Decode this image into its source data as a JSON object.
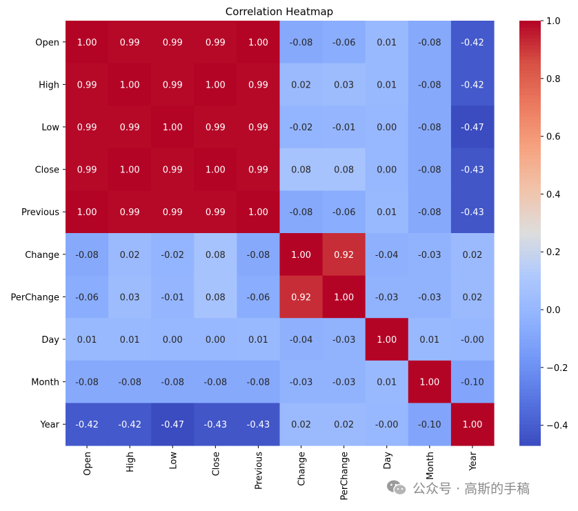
{
  "chart_data": {
    "type": "heatmap",
    "title": "Correlation Heatmap",
    "rows": [
      "Open",
      "High",
      "Low",
      "Close",
      "Previous",
      "Change",
      "PerChange",
      "Day",
      "Month",
      "Year"
    ],
    "columns": [
      "Open",
      "High",
      "Low",
      "Close",
      "Previous",
      "Change",
      "PerChange",
      "Day",
      "Month",
      "Year"
    ],
    "values": [
      [
        1.0,
        0.99,
        0.99,
        0.99,
        1.0,
        -0.08,
        -0.06,
        0.01,
        -0.08,
        -0.42
      ],
      [
        0.99,
        1.0,
        0.99,
        1.0,
        0.99,
        0.02,
        0.03,
        0.01,
        -0.08,
        -0.42
      ],
      [
        0.99,
        0.99,
        1.0,
        0.99,
        0.99,
        -0.02,
        -0.01,
        0.0,
        -0.08,
        -0.47
      ],
      [
        0.99,
        1.0,
        0.99,
        1.0,
        0.99,
        0.08,
        0.08,
        0.0,
        -0.08,
        -0.43
      ],
      [
        1.0,
        0.99,
        0.99,
        0.99,
        1.0,
        -0.08,
        -0.06,
        0.01,
        -0.08,
        -0.43
      ],
      [
        -0.08,
        0.02,
        -0.02,
        0.08,
        -0.08,
        1.0,
        0.92,
        -0.04,
        -0.03,
        0.02
      ],
      [
        -0.06,
        0.03,
        -0.01,
        0.08,
        -0.06,
        0.92,
        1.0,
        -0.03,
        -0.03,
        0.02
      ],
      [
        0.01,
        0.01,
        0.0,
        0.0,
        0.01,
        -0.04,
        -0.03,
        1.0,
        0.01,
        -0.0
      ],
      [
        -0.08,
        -0.08,
        -0.08,
        -0.08,
        -0.08,
        -0.03,
        -0.03,
        0.01,
        1.0,
        -0.1
      ],
      [
        -0.42,
        -0.42,
        -0.47,
        -0.43,
        -0.43,
        0.02,
        0.02,
        -0.0,
        -0.1,
        1.0
      ]
    ],
    "labels": [
      [
        "1.00",
        "0.99",
        "0.99",
        "0.99",
        "1.00",
        "-0.08",
        "-0.06",
        "0.01",
        "-0.08",
        "-0.42"
      ],
      [
        "0.99",
        "1.00",
        "0.99",
        "1.00",
        "0.99",
        "0.02",
        "0.03",
        "0.01",
        "-0.08",
        "-0.42"
      ],
      [
        "0.99",
        "0.99",
        "1.00",
        "0.99",
        "0.99",
        "-0.02",
        "-0.01",
        "0.00",
        "-0.08",
        "-0.47"
      ],
      [
        "0.99",
        "1.00",
        "0.99",
        "1.00",
        "0.99",
        "0.08",
        "0.08",
        "0.00",
        "-0.08",
        "-0.43"
      ],
      [
        "1.00",
        "0.99",
        "0.99",
        "0.99",
        "1.00",
        "-0.08",
        "-0.06",
        "0.01",
        "-0.08",
        "-0.43"
      ],
      [
        "-0.08",
        "0.02",
        "-0.02",
        "0.08",
        "-0.08",
        "1.00",
        "0.92",
        "-0.04",
        "-0.03",
        "0.02"
      ],
      [
        "-0.06",
        "0.03",
        "-0.01",
        "0.08",
        "-0.06",
        "0.92",
        "1.00",
        "-0.03",
        "-0.03",
        "0.02"
      ],
      [
        "0.01",
        "0.01",
        "0.00",
        "0.00",
        "0.01",
        "-0.04",
        "-0.03",
        "1.00",
        "0.01",
        "-0.00"
      ],
      [
        "-0.08",
        "-0.08",
        "-0.08",
        "-0.08",
        "-0.08",
        "-0.03",
        "-0.03",
        "0.01",
        "1.00",
        "-0.10"
      ],
      [
        "-0.42",
        "-0.42",
        "-0.47",
        "-0.43",
        "-0.43",
        "0.02",
        "0.02",
        "-0.00",
        "-0.10",
        "1.00"
      ]
    ],
    "colormap": "coolwarm",
    "vmin": -0.47,
    "vmax": 1.0,
    "colorbar_ticks": [
      1.0,
      0.8,
      0.6,
      0.4,
      0.2,
      0.0,
      -0.2,
      -0.4
    ],
    "colorbar_tick_labels": [
      "1.0",
      "0.8",
      "0.6",
      "0.4",
      "0.2",
      "0.0",
      "−0.2",
      "−0.4"
    ],
    "legend": "colorbar-right"
  },
  "watermark": {
    "text": "公众号 · 高斯的手稿",
    "icon": "wechat-icon"
  }
}
